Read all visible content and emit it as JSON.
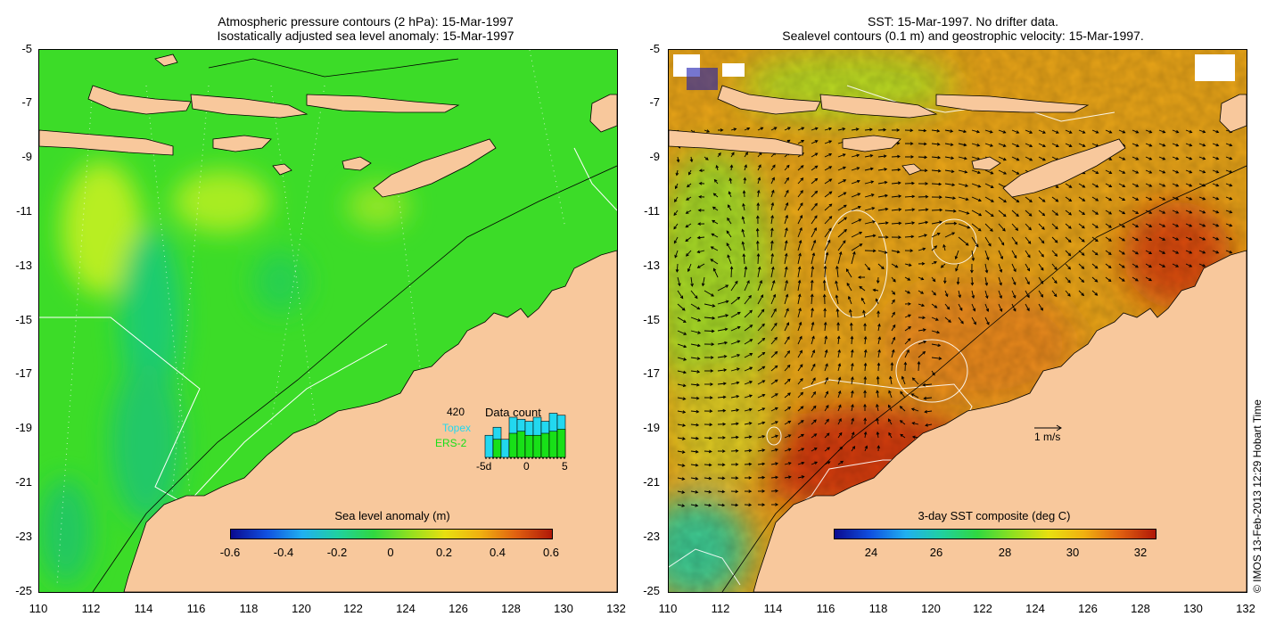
{
  "left_map": {
    "title_line1": "Atmospheric pressure contours (2 hPa): 15-Mar-1997",
    "title_line2": "Isostatically adjusted sea level anomaly: 15-Mar-1997",
    "colorbar": {
      "label": "Sea level anomaly (m)",
      "ticks": [
        "-0.6",
        "-0.4",
        "-0.2",
        "0",
        "0.2",
        "0.4",
        "0.6"
      ]
    },
    "data_count": {
      "total": "420",
      "label": "Data count",
      "series1": "Topex",
      "series2": "ERS-2",
      "axis_ticks": [
        "-5d",
        "0",
        "5"
      ],
      "topex_color": "#22d8f0",
      "ers2_color": "#18e018",
      "topex_values": [
        0.55,
        0.75,
        0.45,
        1.0,
        0.95,
        0.9,
        1.0,
        0.9,
        1.1,
        1.05
      ],
      "ers2_values": [
        0.0,
        0.45,
        0.0,
        0.6,
        0.65,
        0.55,
        0.55,
        0.6,
        0.65,
        0.7
      ]
    }
  },
  "right_map": {
    "title_line1": "SST: 15-Mar-1997. No drifter data.",
    "title_line2": "Sealevel contours (0.1 m) and geostrophic velocity: 15-Mar-1997.",
    "colorbar": {
      "label": "3-day SST composite (deg C)",
      "ticks": [
        "24",
        "26",
        "28",
        "30",
        "32"
      ]
    },
    "velocity_key": "1 m/s"
  },
  "axes": {
    "y_ticks": [
      "-5",
      "-7",
      "-9",
      "-11",
      "-13",
      "-15",
      "-17",
      "-19",
      "-21",
      "-23",
      "-25"
    ],
    "x_ticks": [
      "110",
      "112",
      "114",
      "116",
      "118",
      "120",
      "122",
      "124",
      "126",
      "128",
      "130",
      "132"
    ]
  },
  "colors": {
    "land": "#f8c89c",
    "ocean_sla": "#3cdc28",
    "ocean_sst_warm": "#e87a10"
  },
  "copyright": "© IMOS 13-Feb-2013 12:29 Hobart Time"
}
